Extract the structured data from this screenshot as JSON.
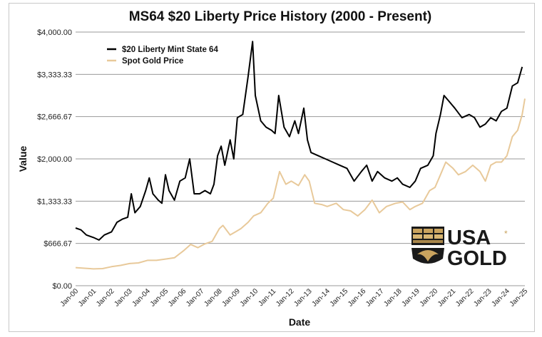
{
  "chart_data": {
    "type": "line",
    "title": "MS64 $20 Liberty Price History (2000 - Present)",
    "xlabel": "Date",
    "ylabel": "Value",
    "ylim": [
      0,
      4000
    ],
    "y_ticks": [
      "$0.00",
      "$666.67",
      "$1,333.33",
      "$2,000.00",
      "$2,666.67",
      "$3,333.33",
      "$4,000.00"
    ],
    "x_ticks": [
      "Jan-00",
      "Jan-01",
      "Jan-02",
      "Jan-03",
      "Jan-04",
      "Jan-05",
      "Jan-06",
      "Jan-07",
      "Jan-08",
      "Jan-09",
      "Jan-10",
      "Jan-11",
      "Jan-12",
      "Jan-13",
      "Jan-14",
      "Jan-15",
      "Jan-16",
      "Jan-17",
      "Jan-18",
      "Jan-19",
      "Jan-20",
      "Jan-21",
      "Jan-22",
      "Jan-23",
      "Jan-24",
      "Jan-25"
    ],
    "xlim": [
      2000,
      2025
    ],
    "grid": "horizontal",
    "legend_position": "top-left",
    "series": [
      {
        "name": "$20 Liberty Mint State 64",
        "color": "#000000",
        "points": [
          [
            2000.0,
            910
          ],
          [
            2000.3,
            880
          ],
          [
            2000.6,
            800
          ],
          [
            2001.0,
            760
          ],
          [
            2001.3,
            720
          ],
          [
            2001.6,
            800
          ],
          [
            2002.0,
            850
          ],
          [
            2002.3,
            1000
          ],
          [
            2002.6,
            1050
          ],
          [
            2002.9,
            1080
          ],
          [
            2003.1,
            1450
          ],
          [
            2003.3,
            1150
          ],
          [
            2003.6,
            1250
          ],
          [
            2003.9,
            1500
          ],
          [
            2004.1,
            1700
          ],
          [
            2004.3,
            1450
          ],
          [
            2004.6,
            1350
          ],
          [
            2004.8,
            1300
          ],
          [
            2005.0,
            1750
          ],
          [
            2005.2,
            1500
          ],
          [
            2005.5,
            1350
          ],
          [
            2005.8,
            1650
          ],
          [
            2006.1,
            1700
          ],
          [
            2006.35,
            2000
          ],
          [
            2006.6,
            1450
          ],
          [
            2006.9,
            1450
          ],
          [
            2007.2,
            1500
          ],
          [
            2007.5,
            1450
          ],
          [
            2007.7,
            1600
          ],
          [
            2007.9,
            2050
          ],
          [
            2008.1,
            2200
          ],
          [
            2008.3,
            1900
          ],
          [
            2008.6,
            2300
          ],
          [
            2008.8,
            2000
          ],
          [
            2009.0,
            2650
          ],
          [
            2009.3,
            2700
          ],
          [
            2009.6,
            3300
          ],
          [
            2009.85,
            3850
          ],
          [
            2010.0,
            3000
          ],
          [
            2010.3,
            2600
          ],
          [
            2010.6,
            2500
          ],
          [
            2010.9,
            2450
          ],
          [
            2011.1,
            2400
          ],
          [
            2011.3,
            3000
          ],
          [
            2011.6,
            2500
          ],
          [
            2011.9,
            2350
          ],
          [
            2012.2,
            2600
          ],
          [
            2012.4,
            2400
          ],
          [
            2012.7,
            2800
          ],
          [
            2012.9,
            2300
          ],
          [
            2013.1,
            2100
          ],
          [
            2013.5,
            2050
          ],
          [
            2013.9,
            2000
          ],
          [
            2014.3,
            1950
          ],
          [
            2014.7,
            1900
          ],
          [
            2015.1,
            1850
          ],
          [
            2015.5,
            1650
          ],
          [
            2015.9,
            1800
          ],
          [
            2016.2,
            1900
          ],
          [
            2016.5,
            1650
          ],
          [
            2016.8,
            1800
          ],
          [
            2017.2,
            1700
          ],
          [
            2017.6,
            1650
          ],
          [
            2017.9,
            1700
          ],
          [
            2018.2,
            1600
          ],
          [
            2018.6,
            1550
          ],
          [
            2018.9,
            1650
          ],
          [
            2019.2,
            1850
          ],
          [
            2019.6,
            1900
          ],
          [
            2019.9,
            2050
          ],
          [
            2020.05,
            2400
          ],
          [
            2020.3,
            2700
          ],
          [
            2020.5,
            3000
          ],
          [
            2020.8,
            2900
          ],
          [
            2021.1,
            2800
          ],
          [
            2021.5,
            2650
          ],
          [
            2021.9,
            2700
          ],
          [
            2022.2,
            2650
          ],
          [
            2022.5,
            2500
          ],
          [
            2022.8,
            2550
          ],
          [
            2023.1,
            2650
          ],
          [
            2023.4,
            2600
          ],
          [
            2023.7,
            2750
          ],
          [
            2024.0,
            2800
          ],
          [
            2024.3,
            3150
          ],
          [
            2024.6,
            3200
          ],
          [
            2024.85,
            3450
          ]
        ]
      },
      {
        "name": "Spot Gold Price",
        "color": "#e8c99a",
        "points": [
          [
            2000.0,
            285
          ],
          [
            2000.5,
            275
          ],
          [
            2001.0,
            265
          ],
          [
            2001.5,
            270
          ],
          [
            2002.0,
            300
          ],
          [
            2002.5,
            320
          ],
          [
            2003.0,
            350
          ],
          [
            2003.5,
            360
          ],
          [
            2004.0,
            400
          ],
          [
            2004.5,
            400
          ],
          [
            2005.0,
            420
          ],
          [
            2005.5,
            440
          ],
          [
            2006.0,
            550
          ],
          [
            2006.4,
            650
          ],
          [
            2006.8,
            600
          ],
          [
            2007.2,
            660
          ],
          [
            2007.6,
            700
          ],
          [
            2008.0,
            900
          ],
          [
            2008.2,
            950
          ],
          [
            2008.6,
            800
          ],
          [
            2008.9,
            850
          ],
          [
            2009.2,
            900
          ],
          [
            2009.6,
            1000
          ],
          [
            2009.9,
            1100
          ],
          [
            2010.3,
            1150
          ],
          [
            2010.7,
            1300
          ],
          [
            2011.0,
            1380
          ],
          [
            2011.35,
            1800
          ],
          [
            2011.7,
            1600
          ],
          [
            2012.0,
            1650
          ],
          [
            2012.4,
            1580
          ],
          [
            2012.75,
            1750
          ],
          [
            2013.0,
            1650
          ],
          [
            2013.3,
            1300
          ],
          [
            2013.7,
            1280
          ],
          [
            2014.0,
            1250
          ],
          [
            2014.5,
            1300
          ],
          [
            2014.9,
            1200
          ],
          [
            2015.3,
            1180
          ],
          [
            2015.7,
            1100
          ],
          [
            2016.1,
            1200
          ],
          [
            2016.5,
            1350
          ],
          [
            2016.9,
            1150
          ],
          [
            2017.3,
            1250
          ],
          [
            2017.8,
            1300
          ],
          [
            2018.2,
            1320
          ],
          [
            2018.6,
            1200
          ],
          [
            2018.9,
            1250
          ],
          [
            2019.3,
            1300
          ],
          [
            2019.7,
            1500
          ],
          [
            2020.0,
            1550
          ],
          [
            2020.3,
            1750
          ],
          [
            2020.6,
            1950
          ],
          [
            2021.0,
            1850
          ],
          [
            2021.3,
            1750
          ],
          [
            2021.7,
            1800
          ],
          [
            2022.1,
            1900
          ],
          [
            2022.5,
            1800
          ],
          [
            2022.8,
            1650
          ],
          [
            2023.1,
            1900
          ],
          [
            2023.4,
            1950
          ],
          [
            2023.7,
            1950
          ],
          [
            2024.0,
            2050
          ],
          [
            2024.3,
            2350
          ],
          [
            2024.6,
            2450
          ],
          [
            2024.85,
            2700
          ],
          [
            2025.0,
            2950
          ]
        ]
      }
    ]
  },
  "logo": {
    "line1": "USA",
    "line2": "GOLD",
    "mark": "*"
  }
}
